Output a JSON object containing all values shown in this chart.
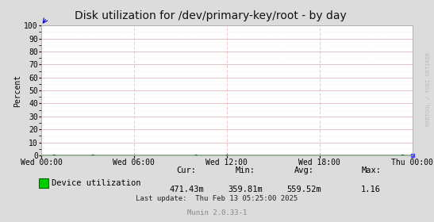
{
  "title": "Disk utilization for /dev/primary-key/root - by day",
  "ylabel": "Percent",
  "background_color": "#dcdcdc",
  "plot_background_color": "#ffffff",
  "grid_color_major": "#e8b8b8",
  "grid_color_minor": "#f5e0e0",
  "ylim": [
    0,
    100
  ],
  "yticks": [
    0,
    10,
    20,
    30,
    40,
    50,
    60,
    70,
    80,
    90,
    100
  ],
  "xtick_labels": [
    "Wed 00:00",
    "Wed 06:00",
    "Wed 12:00",
    "Wed 18:00",
    "Thu 00:00"
  ],
  "line_color_fill": "#00cc00",
  "line_color_border": "#006600",
  "legend_label": "Device utilization",
  "cur_label": "Cur:",
  "cur_value": "471.43m",
  "min_label": "Min:",
  "min_value": "359.81m",
  "avg_label": "Avg:",
  "avg_value": "559.52m",
  "max_label": "Max:",
  "max_value": "1.16",
  "last_update": "Last update:  Thu Feb 13 05:25:00 2025",
  "munin_label": "Munin 2.0.33-1",
  "rrdtool_label": "RRDTOOL / TOBI OETIKER",
  "title_fontsize": 10,
  "axis_fontsize": 7,
  "legend_fontsize": 7.5,
  "small_fontsize": 6.5,
  "rrdtool_fontsize": 5
}
